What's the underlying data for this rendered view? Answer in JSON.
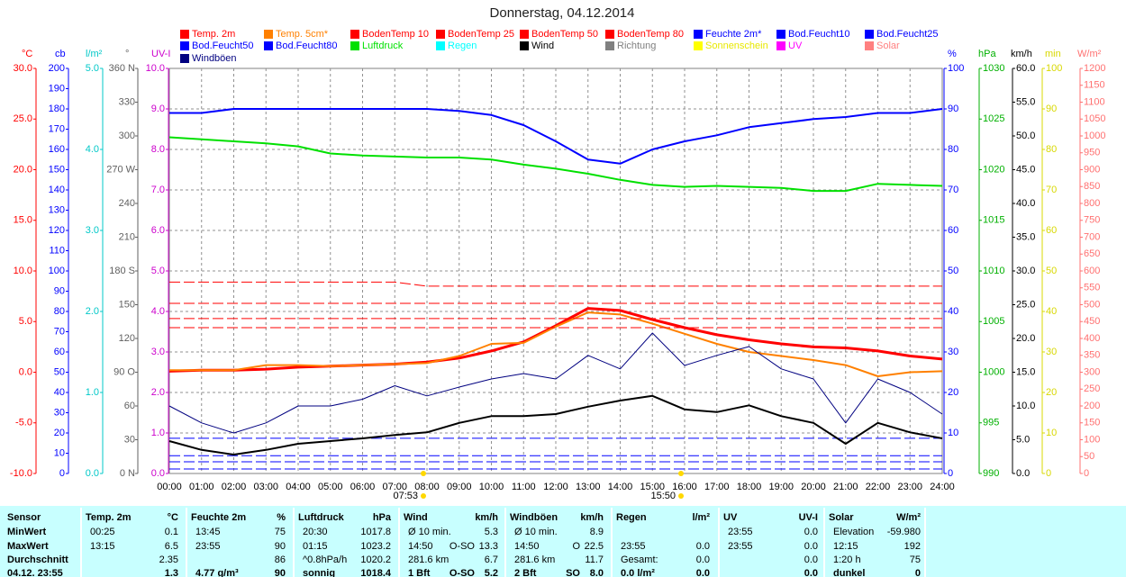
{
  "chart_data": {
    "type": "line",
    "title": "Donnerstag, 04.12.2014",
    "categories": [
      "00:00",
      "01:00",
      "02:00",
      "03:00",
      "04:00",
      "05:00",
      "06:00",
      "07:00",
      "08:00",
      "09:00",
      "10:00",
      "11:00",
      "12:00",
      "13:00",
      "14:00",
      "15:00",
      "16:00",
      "17:00",
      "18:00",
      "19:00",
      "20:00",
      "21:00",
      "22:00",
      "23:00",
      "24:00"
    ],
    "annotations": [
      "07:53",
      "15:50"
    ],
    "axes": [
      {
        "id": "temp",
        "title": "°C",
        "color": "#ff0000",
        "side": "left",
        "lim": [
          -10,
          30
        ],
        "ticks": [
          {
            "value": -10,
            "label": "-10.0"
          },
          {
            "value": -5,
            "label": "-5.0"
          },
          {
            "value": 0,
            "label": "0.0"
          },
          {
            "value": 5,
            "label": "5.0"
          },
          {
            "value": 10,
            "label": "10.0"
          },
          {
            "value": 15,
            "label": "15.0"
          },
          {
            "value": 20,
            "label": "20.0"
          },
          {
            "value": 25,
            "label": "25.0"
          },
          {
            "value": 30,
            "label": "30.0"
          }
        ]
      },
      {
        "id": "cb",
        "title": "cb",
        "color": "#0000ff",
        "side": "left",
        "lim": [
          0,
          200
        ],
        "ticks": [
          0,
          10,
          20,
          30,
          40,
          50,
          60,
          70,
          80,
          90,
          100,
          110,
          120,
          130,
          140,
          150,
          160,
          170,
          180,
          190,
          200
        ]
      },
      {
        "id": "rain",
        "title": "l/m²",
        "color": "#00c8c8",
        "side": "left",
        "lim": [
          0,
          5
        ],
        "ticks": [
          {
            "value": 0,
            "label": "0.0"
          },
          {
            "value": 1,
            "label": "1.0"
          },
          {
            "value": 2,
            "label": "2.0"
          },
          {
            "value": 3,
            "label": "3.0"
          },
          {
            "value": 4,
            "label": "4.0"
          },
          {
            "value": 5,
            "label": "5.0"
          }
        ]
      },
      {
        "id": "dir",
        "title": "°",
        "color": "#606060",
        "side": "left",
        "lim": [
          0,
          360
        ],
        "ticks": [
          {
            "value": 0,
            "label": "0 N"
          },
          30,
          60,
          {
            "value": 90,
            "label": "90 O"
          },
          120,
          150,
          {
            "value": 180,
            "label": "180 S"
          },
          210,
          240,
          {
            "value": 270,
            "label": "270 W"
          },
          300,
          330,
          {
            "value": 360,
            "label": "360 N"
          }
        ]
      },
      {
        "id": "uv",
        "title": "UV-I",
        "color": "#cc00cc",
        "side": "left",
        "lim": [
          0,
          10
        ],
        "grid": true,
        "ticks": [
          {
            "value": 0,
            "label": "0.0"
          },
          {
            "value": 1,
            "label": "1.0"
          },
          {
            "value": 2,
            "label": "2.0"
          },
          {
            "value": 3,
            "label": "3.0"
          },
          {
            "value": 4,
            "label": "4.0"
          },
          {
            "value": 5,
            "label": "5.0"
          },
          {
            "value": 6,
            "label": "6.0"
          },
          {
            "value": 7,
            "label": "7.0"
          },
          {
            "value": 8,
            "label": "8.0"
          },
          {
            "value": 9,
            "label": "9.0"
          },
          {
            "value": 10,
            "label": "10.0"
          }
        ]
      },
      {
        "id": "hum",
        "title": "%",
        "color": "#0000ff",
        "side": "right",
        "lim": [
          0,
          100
        ],
        "ticks": [
          0,
          10,
          20,
          30,
          40,
          50,
          60,
          70,
          80,
          90,
          100
        ]
      },
      {
        "id": "press",
        "title": "hPa",
        "color": "#00b000",
        "side": "right",
        "lim": [
          990,
          1030
        ],
        "ticks": [
          990,
          995,
          1000,
          1005,
          1010,
          1015,
          1020,
          1025,
          1030
        ]
      },
      {
        "id": "wind",
        "title": "km/h",
        "color": "#000000",
        "side": "right",
        "lim": [
          0,
          60
        ],
        "ticks": [
          {
            "value": 0,
            "label": "0.0"
          },
          {
            "value": 5,
            "label": "5.0"
          },
          {
            "value": 10,
            "label": "10.0"
          },
          {
            "value": 15,
            "label": "15.0"
          },
          {
            "value": 20,
            "label": "20.0"
          },
          {
            "value": 25,
            "label": "25.0"
          },
          {
            "value": 30,
            "label": "30.0"
          },
          {
            "value": 35,
            "label": "35.0"
          },
          {
            "value": 40,
            "label": "40.0"
          },
          {
            "value": 45,
            "label": "45.0"
          },
          {
            "value": 50,
            "label": "50.0"
          },
          {
            "value": 55,
            "label": "55.0"
          },
          {
            "value": 60,
            "label": "60.0"
          }
        ]
      },
      {
        "id": "min",
        "title": "min",
        "color": "#d8d800",
        "side": "right",
        "lim": [
          0,
          100
        ],
        "ticks": [
          0,
          10,
          20,
          30,
          40,
          50,
          60,
          70,
          80,
          90,
          100
        ]
      },
      {
        "id": "solar",
        "title": "W/m²",
        "color": "#ff7070",
        "side": "right",
        "lim": [
          0,
          1200
        ],
        "ticks": [
          0,
          50,
          100,
          150,
          200,
          250,
          300,
          350,
          400,
          450,
          500,
          550,
          600,
          650,
          700,
          750,
          800,
          850,
          900,
          950,
          1000,
          1050,
          1100,
          1150,
          1200
        ]
      }
    ],
    "series": [
      {
        "name": "Temp. 2m",
        "color": "#ff0000",
        "axis": "temp",
        "width": 3,
        "values": [
          0.1,
          0.2,
          0.2,
          0.3,
          0.5,
          0.6,
          0.7,
          0.8,
          1.0,
          1.4,
          2.1,
          3.0,
          4.6,
          6.3,
          6.1,
          5.2,
          4.4,
          3.7,
          3.2,
          2.8,
          2.5,
          2.4,
          2.1,
          1.6,
          1.3
        ]
      },
      {
        "name": "Temp. 5cm*",
        "color": "#ff8000",
        "axis": "temp",
        "width": 2,
        "values": [
          0.2,
          0.2,
          0.2,
          0.7,
          0.7,
          0.6,
          0.7,
          0.8,
          0.9,
          1.6,
          2.8,
          2.9,
          4.5,
          5.9,
          5.7,
          4.8,
          3.8,
          2.8,
          2.0,
          1.6,
          1.2,
          0.7,
          -0.4,
          0.0,
          0.1
        ]
      },
      {
        "name": "BodenTemp 10",
        "color": "#ff0000",
        "axis": "temp",
        "width": 1,
        "dashed": true,
        "values": [
          4.4,
          4.4,
          4.4,
          4.4,
          4.4,
          4.4,
          4.4,
          4.4,
          4.4,
          4.4,
          4.4,
          4.4,
          4.4,
          4.4,
          4.4,
          4.4,
          4.4,
          4.4,
          4.4,
          4.4,
          4.4,
          4.4,
          4.4,
          4.4,
          4.4
        ]
      },
      {
        "name": "BodenTemp 25",
        "color": "#ff0000",
        "axis": "temp",
        "width": 1,
        "dashed": true,
        "values": [
          5.3,
          5.3,
          5.3,
          5.3,
          5.3,
          5.3,
          5.3,
          5.3,
          5.3,
          5.3,
          5.3,
          5.3,
          5.3,
          5.3,
          5.3,
          5.3,
          5.3,
          5.3,
          5.3,
          5.3,
          5.3,
          5.3,
          5.3,
          5.3,
          5.3
        ]
      },
      {
        "name": "BodenTemp 50",
        "color": "#ff0000",
        "axis": "temp",
        "width": 1,
        "dashed": true,
        "values": [
          6.8,
          6.8,
          6.8,
          6.8,
          6.8,
          6.8,
          6.8,
          6.8,
          6.8,
          6.8,
          6.8,
          6.8,
          6.8,
          6.8,
          6.8,
          6.8,
          6.8,
          6.8,
          6.8,
          6.8,
          6.8,
          6.8,
          6.8,
          6.8,
          6.8
        ]
      },
      {
        "name": "BodenTemp 80",
        "color": "#ff0000",
        "axis": "temp",
        "width": 1,
        "dashed": true,
        "values": [
          8.9,
          8.9,
          8.9,
          8.9,
          8.9,
          8.9,
          8.9,
          8.9,
          8.5,
          8.5,
          8.5,
          8.5,
          8.5,
          8.5,
          8.5,
          8.5,
          8.5,
          8.5,
          8.5,
          8.5,
          8.5,
          8.5,
          8.5,
          8.5,
          8.5
        ]
      },
      {
        "name": "Feuchte 2m*",
        "color": "#0000ff",
        "axis": "hum",
        "width": 2,
        "values": [
          89,
          89,
          90,
          90,
          90,
          90,
          90,
          90,
          90,
          89.5,
          88.5,
          86,
          82,
          77.5,
          76.5,
          80,
          82,
          83.5,
          85.5,
          86.5,
          87.5,
          88,
          89,
          89,
          90
        ]
      },
      {
        "name": "Bod.Feucht10",
        "color": "#0000ff",
        "axis": "hum",
        "width": 1,
        "dashed": true,
        "values": [
          8.7,
          8.7,
          8.7,
          8.7,
          8.7,
          8.7,
          8.7,
          8.7,
          8.7,
          8.7,
          8.7,
          8.7,
          8.7,
          8.7,
          8.7,
          8.7,
          8.7,
          8.7,
          8.7,
          8.7,
          8.7,
          8.7,
          8.7,
          8.7,
          8.7
        ]
      },
      {
        "name": "Bod.Feucht25",
        "color": "#0000ff",
        "axis": "hum",
        "width": 1,
        "dashed": true,
        "values": [
          4.4,
          4.4,
          4.4,
          4.4,
          4.4,
          4.4,
          4.4,
          4.4,
          4.4,
          4.4,
          4.4,
          4.4,
          4.4,
          4.4,
          4.4,
          4.4,
          4.4,
          4.4,
          4.4,
          4.4,
          4.4,
          4.4,
          4.4,
          4.4,
          4.4
        ]
      },
      {
        "name": "Bod.Feucht50",
        "color": "#0000ff",
        "axis": "hum",
        "width": 1,
        "dashed": true,
        "values": [
          2.9,
          2.9,
          2.9,
          2.9,
          2.9,
          2.9,
          2.9,
          2.9,
          2.9,
          2.9,
          2.9,
          2.9,
          2.9,
          2.9,
          2.9,
          2.9,
          2.9,
          2.9,
          2.9,
          2.9,
          2.9,
          2.9,
          2.9,
          2.9,
          2.9
        ]
      },
      {
        "name": "Bod.Feucht80",
        "color": "#0000ff",
        "axis": "hum",
        "width": 1,
        "dashed": true,
        "values": [
          1.1,
          1.1,
          1.1,
          1.1,
          1.1,
          1.1,
          1.1,
          1.1,
          1.1,
          1.1,
          1.1,
          1.1,
          1.1,
          1.1,
          1.1,
          1.1,
          1.1,
          1.1,
          1.1,
          1.1,
          1.1,
          1.1,
          1.1,
          1.1,
          1.1
        ]
      },
      {
        "name": "Luftdruck",
        "color": "#00e000",
        "axis": "press",
        "width": 2,
        "values": [
          1023.2,
          1023.0,
          1022.8,
          1022.6,
          1022.3,
          1021.6,
          1021.4,
          1021.3,
          1021.2,
          1021.2,
          1021.0,
          1020.5,
          1020.1,
          1019.6,
          1019.0,
          1018.5,
          1018.3,
          1018.4,
          1018.3,
          1018.2,
          1017.9,
          1017.9,
          1018.6,
          1018.5,
          1018.4
        ]
      },
      {
        "name": "Regen",
        "color": "#00ffff"
      },
      {
        "name": "Wind",
        "color": "#000000",
        "axis": "wind",
        "width": 2,
        "values": [
          4.8,
          3.5,
          2.8,
          3.5,
          4.4,
          4.8,
          5.2,
          5.7,
          6.1,
          7.5,
          8.5,
          8.5,
          8.8,
          9.9,
          10.8,
          11.5,
          9.5,
          9.1,
          10.1,
          8.5,
          7.5,
          4.4,
          7.5,
          6.1,
          5.2
        ]
      },
      {
        "name": "Richtung",
        "color": "#808080"
      },
      {
        "name": "Sonnenschein",
        "color": "#ffff00"
      },
      {
        "name": "UV",
        "color": "#ff00ff"
      },
      {
        "name": "Solar",
        "color": "#ff8080"
      },
      {
        "name": "Windböen",
        "color": "#000080",
        "axis": "wind",
        "width": 1,
        "values": [
          10,
          7.5,
          6,
          7.5,
          10,
          10,
          11,
          13,
          11.5,
          12.8,
          14,
          14.8,
          14,
          17.5,
          15.5,
          20.8,
          16,
          17.5,
          18.8,
          15.5,
          14,
          7.5,
          14,
          12,
          8.8
        ]
      }
    ]
  },
  "table": {
    "sensor": "Sensor",
    "groups": [
      [
        "Temp. 2m",
        "°C"
      ],
      [
        "Feuchte 2m",
        "%"
      ],
      [
        "Luftdruck",
        "hPa"
      ],
      [
        "Wind",
        "km/h"
      ],
      [
        "Windböen",
        "km/h"
      ],
      [
        "Regen",
        "l/m²"
      ],
      [
        "UV",
        "UV-I"
      ],
      [
        "Solar",
        "W/m²"
      ]
    ],
    "rows": [
      {
        "label": "MinWert",
        "cells": [
          [
            "00:25",
            null,
            "0.1"
          ],
          [
            "13:45",
            null,
            "75"
          ],
          [
            "20:30",
            null,
            "1017.8"
          ],
          [
            "Ø 10 min.",
            null,
            "5.3"
          ],
          [
            "Ø 10 min.",
            null,
            "8.9"
          ],
          [
            null,
            null,
            null
          ],
          [
            "23:55",
            null,
            "0.0"
          ],
          [
            "Elevation",
            null,
            "-59.980"
          ]
        ]
      },
      {
        "label": "MaxWert",
        "cells": [
          [
            "13:15",
            null,
            "6.5"
          ],
          [
            "23:55",
            null,
            "90"
          ],
          [
            "01:15",
            null,
            "1023.2"
          ],
          [
            "14:50",
            "O-SO",
            "13.3"
          ],
          [
            "14:50",
            "O",
            "22.5"
          ],
          [
            "23:55",
            null,
            "0.0"
          ],
          [
            "23:55",
            null,
            "0.0"
          ],
          [
            "12:15",
            null,
            "192"
          ]
        ]
      },
      {
        "label": "Durchschnitt",
        "cells": [
          [
            null,
            null,
            "2.35"
          ],
          [
            null,
            null,
            "86"
          ],
          [
            "^0.8hPa/h",
            null,
            "1020.2"
          ],
          [
            "281.6 km",
            null,
            "6.7"
          ],
          [
            "281.6 km",
            null,
            "11.7"
          ],
          [
            "Gesamt:",
            null,
            "0.0"
          ],
          [
            null,
            null,
            "0.0"
          ],
          [
            "1:20 h",
            null,
            "75"
          ]
        ]
      },
      {
        "label": "04.12. 23:55",
        "cells": [
          [
            null,
            null,
            "1.3"
          ],
          [
            "4.77 g/m³",
            null,
            "90"
          ],
          [
            "sonnig",
            null,
            "1018.4"
          ],
          [
            "1 Bft",
            "O-SO",
            "5.2"
          ],
          [
            "2 Bft",
            "SO",
            "8.0"
          ],
          [
            "0.0 l/m²",
            null,
            "0.0"
          ],
          [
            null,
            null,
            "0.0"
          ],
          [
            "dunkel",
            null,
            "0"
          ]
        ]
      }
    ]
  }
}
